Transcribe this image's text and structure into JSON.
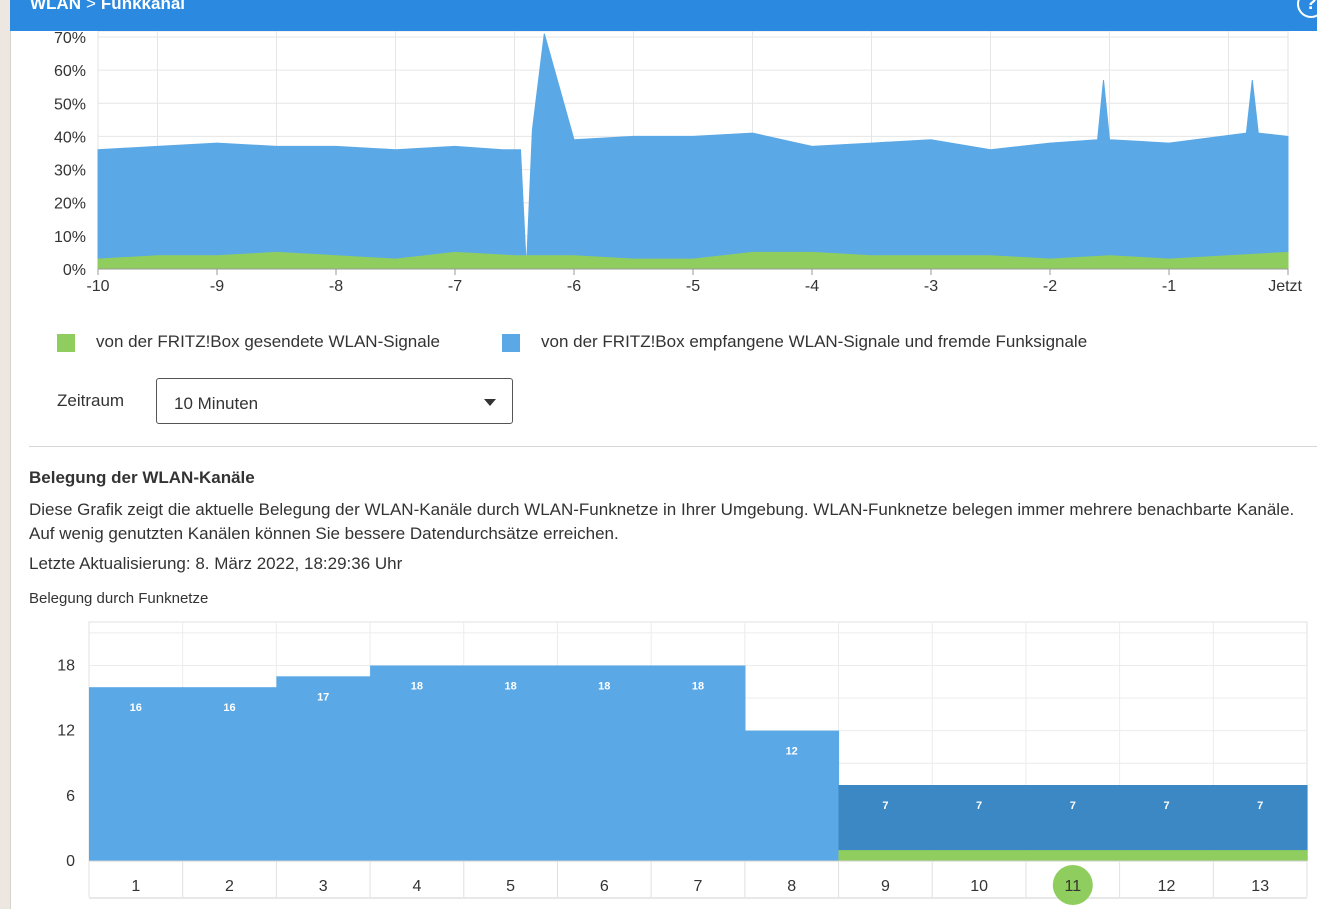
{
  "header": {
    "breadcrumb_root": "WLAN",
    "breadcrumb_separator": ">",
    "breadcrumb_current": "Funkkanal",
    "help_icon": "question-mark-icon",
    "bg_color": "#2b8ae0"
  },
  "legend": {
    "sent_label": "von der FRITZ!Box gesendete WLAN-Signale",
    "sent_color": "#8fce5e",
    "received_label": "von der FRITZ!Box empfangene WLAN-Signale und fremde Funksignale",
    "received_color": "#5aa8e6"
  },
  "period": {
    "label": "Zeitraum",
    "value": "10 Minuten"
  },
  "channels_section": {
    "title": "Belegung der WLAN-Kanäle",
    "description": "Diese Grafik zeigt die aktuelle Belegung der WLAN-Kanäle durch WLAN-Funknetze in Ihrer Umgebung. WLAN-Funknetze belegen immer mehrere benachbarte Kanäle. Auf wenig genutzten Kanälen können Sie bessere Datendurchsätze erreichen.",
    "last_update": "Letzte Aktualisierung: 8. März 2022, 18:29:36 Uhr",
    "chart_title": "Belegung durch Funknetze"
  },
  "chart_data": [
    {
      "type": "area",
      "y_tick_labels": [
        "0%",
        "10%",
        "20%",
        "30%",
        "40%",
        "50%",
        "60%",
        "70%"
      ],
      "x_tick_labels": [
        "-10",
        "-9",
        "-8",
        "-7",
        "-6",
        "-5",
        "-4",
        "-3",
        "-2",
        "-1",
        "Jetzt"
      ],
      "ylim": [
        0,
        70
      ],
      "xlim": [
        -10,
        0
      ],
      "grid": true,
      "series": [
        {
          "name": "von der FRITZ!Box empfangene WLAN-Signale und fremde Funksignale",
          "color": "#5aa8e6",
          "x": [
            -10,
            -9.5,
            -9,
            -8.5,
            -8,
            -7.5,
            -7,
            -6.6,
            -6.45,
            -6.4,
            -6.35,
            -6.25,
            -6,
            -5.5,
            -5,
            -4.5,
            -4,
            -3.5,
            -3,
            -2.5,
            -2,
            -1.6,
            -1.55,
            -1.5,
            -1,
            -0.35,
            -0.3,
            -0.25,
            0
          ],
          "values": [
            36,
            37,
            38,
            37,
            37,
            36,
            37,
            36,
            36,
            0,
            42,
            71,
            39,
            40,
            40,
            41,
            37,
            38,
            39,
            36,
            38,
            39,
            57,
            39,
            38,
            41,
            57,
            41,
            40
          ]
        },
        {
          "name": "von der FRITZ!Box gesendete WLAN-Signale",
          "color": "#8fce5e",
          "x": [
            -10,
            -9.5,
            -9,
            -8.5,
            -8,
            -7.5,
            -7,
            -6.5,
            -6,
            -5.5,
            -5,
            -4.5,
            -4,
            -3.5,
            -3,
            -2.5,
            -2,
            -1.5,
            -1,
            -0.5,
            0
          ],
          "values": [
            3,
            4,
            4,
            5,
            4,
            3,
            5,
            4,
            4,
            3,
            3,
            5,
            5,
            4,
            4,
            4,
            3,
            4,
            3,
            4,
            5
          ]
        }
      ]
    },
    {
      "type": "bar",
      "categories": [
        "1",
        "2",
        "3",
        "4",
        "5",
        "6",
        "7",
        "8",
        "9",
        "10",
        "11",
        "12",
        "13"
      ],
      "y_tick_labels": [
        "0",
        "6",
        "12",
        "18"
      ],
      "ylim": [
        0,
        22
      ],
      "grid": true,
      "highlighted_category": "11",
      "series": [
        {
          "values": [
            16,
            16,
            17,
            18,
            18,
            18,
            18,
            12,
            7,
            7,
            7,
            7,
            7
          ],
          "colors": [
            "#5aa8e6",
            "#5aa8e6",
            "#5aa8e6",
            "#5aa8e6",
            "#5aa8e6",
            "#5aa8e6",
            "#5aa8e6",
            "#5aa8e6",
            "#3c88c4",
            "#3c88c4",
            "#3c88c4",
            "#3c88c4",
            "#3c88c4"
          ]
        },
        {
          "values": [
            0,
            0,
            0,
            0,
            0,
            0,
            0,
            0,
            1,
            1,
            1,
            1,
            1
          ],
          "color": "#8fce5e"
        }
      ]
    }
  ]
}
